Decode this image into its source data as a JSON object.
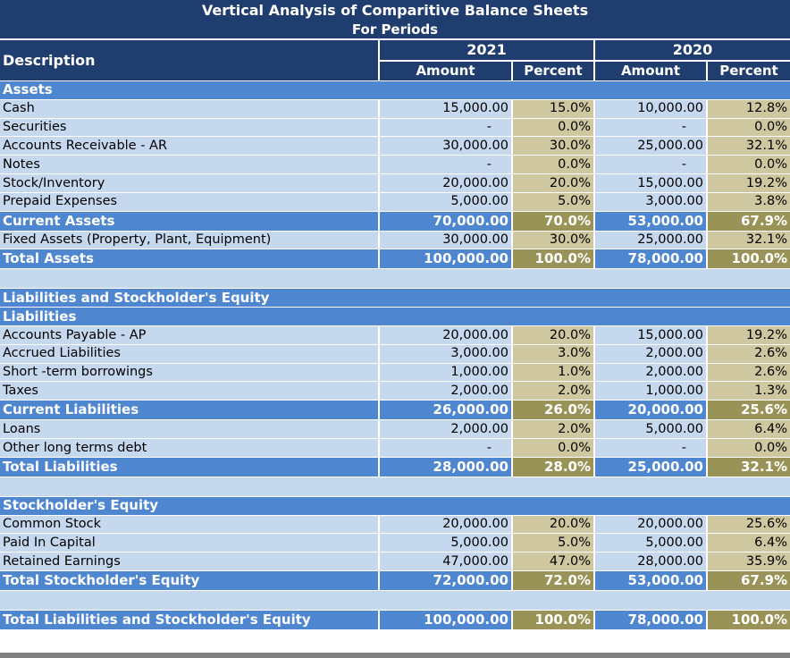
{
  "title": "Vertical Analysis of Comparitive Balance Sheets",
  "subtitle": "For Periods",
  "headers": {
    "description": "Description",
    "year1": "2021",
    "year2": "2020",
    "amount": "Amount",
    "percent": "Percent"
  },
  "rows": [
    {
      "type": "section",
      "label": "Assets"
    },
    {
      "type": "data",
      "label": "Cash",
      "a1": "15,000.00",
      "p1": "15.0%",
      "a2": "10,000.00",
      "p2": "12.8%"
    },
    {
      "type": "data",
      "label": "Securities",
      "a1": "-",
      "p1": "0.0%",
      "a2": "-",
      "p2": "0.0%"
    },
    {
      "type": "data",
      "label": "Accounts Receivable - AR",
      "a1": "30,000.00",
      "p1": "30.0%",
      "a2": "25,000.00",
      "p2": "32.1%"
    },
    {
      "type": "data",
      "label": "Notes",
      "a1": "-",
      "p1": "0.0%",
      "a2": "-",
      "p2": "0.0%"
    },
    {
      "type": "data",
      "label": "Stock/Inventory",
      "a1": "20,000.00",
      "p1": "20.0%",
      "a2": "15,000.00",
      "p2": "19.2%"
    },
    {
      "type": "data",
      "label": "Prepaid Expenses",
      "a1": "5,000.00",
      "p1": "5.0%",
      "a2": "3,000.00",
      "p2": "3.8%"
    },
    {
      "type": "total",
      "label": "Current Assets",
      "a1": "70,000.00",
      "p1": "70.0%",
      "a2": "53,000.00",
      "p2": "67.9%"
    },
    {
      "type": "data",
      "label": "Fixed Assets (Property, Plant, Equipment)",
      "a1": "30,000.00",
      "p1": "30.0%",
      "a2": "25,000.00",
      "p2": "32.1%"
    },
    {
      "type": "total",
      "label": "Total Assets",
      "a1": "100,000.00",
      "p1": "100.0%",
      "a2": "78,000.00",
      "p2": "100.0%"
    },
    {
      "type": "spacer"
    },
    {
      "type": "section",
      "label": "Liabilities and Stockholder's Equity"
    },
    {
      "type": "section",
      "label": "Liabilities"
    },
    {
      "type": "data",
      "label": "Accounts Payable - AP",
      "a1": "20,000.00",
      "p1": "20.0%",
      "a2": "15,000.00",
      "p2": "19.2%"
    },
    {
      "type": "data",
      "label": "Accrued Liabilities",
      "a1": "3,000.00",
      "p1": "3.0%",
      "a2": "2,000.00",
      "p2": "2.6%"
    },
    {
      "type": "data",
      "label": "Short -term borrowings",
      "a1": "1,000.00",
      "p1": "1.0%",
      "a2": "2,000.00",
      "p2": "2.6%"
    },
    {
      "type": "data",
      "label": "Taxes",
      "a1": "2,000.00",
      "p1": "2.0%",
      "a2": "1,000.00",
      "p2": "1.3%"
    },
    {
      "type": "total",
      "label": "Current Liabilities",
      "a1": "26,000.00",
      "p1": "26.0%",
      "a2": "20,000.00",
      "p2": "25.6%"
    },
    {
      "type": "data",
      "label": "Loans",
      "a1": "2,000.00",
      "p1": "2.0%",
      "a2": "5,000.00",
      "p2": "6.4%"
    },
    {
      "type": "data",
      "label": "Other long terms debt",
      "a1": "-",
      "p1": "0.0%",
      "a2": "-",
      "p2": "0.0%"
    },
    {
      "type": "total",
      "label": "Total Liabilities",
      "a1": "28,000.00",
      "p1": "28.0%",
      "a2": "25,000.00",
      "p2": "32.1%"
    },
    {
      "type": "spacer"
    },
    {
      "type": "section",
      "label": "Stockholder's Equity"
    },
    {
      "type": "data",
      "label": "Common Stock",
      "a1": "20,000.00",
      "p1": "20.0%",
      "a2": "20,000.00",
      "p2": "25.6%"
    },
    {
      "type": "data",
      "label": "Paid In Capital",
      "a1": "5,000.00",
      "p1": "5.0%",
      "a2": "5,000.00",
      "p2": "6.4%"
    },
    {
      "type": "data",
      "label": "Retained Earnings",
      "a1": "47,000.00",
      "p1": "47.0%",
      "a2": "28,000.00",
      "p2": "35.9%"
    },
    {
      "type": "total",
      "label": "Total Stockholder's Equity",
      "a1": "72,000.00",
      "p1": "72.0%",
      "a2": "53,000.00",
      "p2": "67.9%"
    },
    {
      "type": "spacer"
    },
    {
      "type": "total",
      "label": "Total Liabilities and Stockholder's Equity",
      "a1": "100,000.00",
      "p1": "100.0%",
      "a2": "78,000.00",
      "p2": "100.0%"
    }
  ],
  "colors": {
    "navy": "#1f3d6e",
    "section_blue": "#4e86d0",
    "light_blue": "#c5d8ee",
    "tan": "#cfc7a0",
    "olive": "#9a9357"
  }
}
